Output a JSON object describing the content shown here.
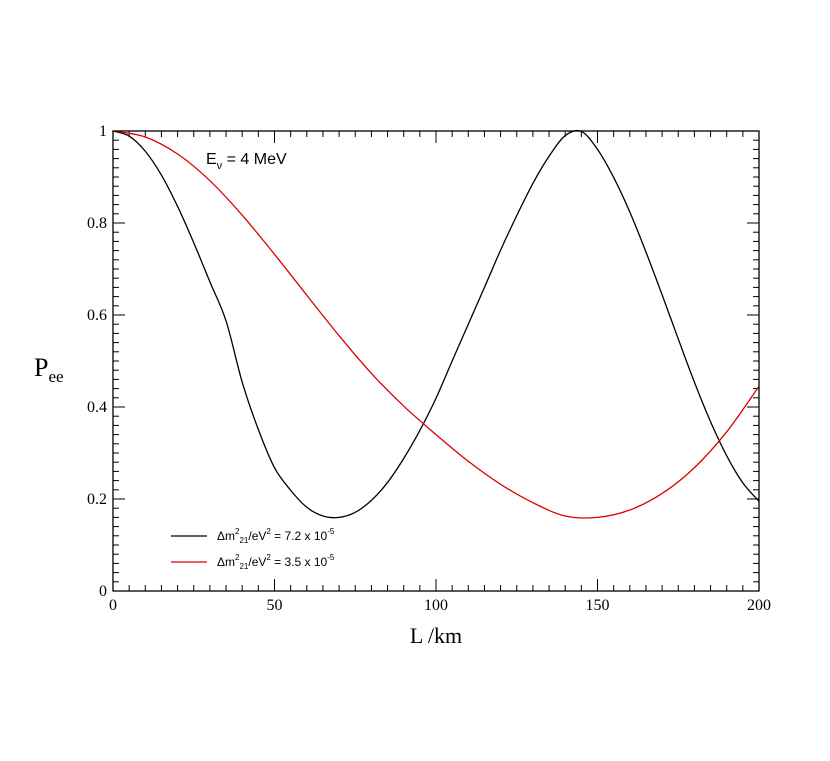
{
  "chart_data": {
    "type": "line",
    "xlabel": "L /km",
    "ylabel": {
      "main": "P",
      "sub": "ee"
    },
    "xlim": [
      0,
      200
    ],
    "ylim": [
      0,
      1
    ],
    "xticks": [
      0,
      50,
      100,
      150,
      200
    ],
    "xtick_labels": [
      "0",
      "50",
      "100",
      "150",
      "200"
    ],
    "yticks": [
      0,
      0.2,
      0.4,
      0.6,
      0.8,
      1
    ],
    "ytick_labels": [
      "0",
      "0.2",
      "0.4",
      "0.6",
      "0.8",
      "1"
    ],
    "grid": false,
    "legend_position": "bottom-left",
    "annotation": {
      "main": "E",
      "sub": "ν",
      "rest": " = 4 MeV"
    },
    "series": [
      {
        "color": "#000000",
        "legend": {
          "a": "Δm",
          "sup1": "2",
          "sub1": "21",
          "b": "/eV",
          "sup2": "2",
          "c": " = 7.2 x 10",
          "sup3": "-5"
        },
        "x": [
          0,
          5,
          10,
          15,
          20,
          25,
          30,
          35,
          40,
          45,
          50,
          55,
          60,
          65,
          70,
          75,
          80,
          85,
          90,
          95,
          100,
          105,
          110,
          115,
          120,
          125,
          130,
          135,
          140,
          145,
          150,
          155,
          160,
          165,
          170,
          175,
          180,
          185,
          190,
          195,
          200
        ],
        "y": [
          1.0,
          0.989,
          0.956,
          0.904,
          0.836,
          0.757,
          0.672,
          0.587,
          0.454,
          0.351,
          0.268,
          0.219,
          0.182,
          0.163,
          0.16,
          0.171,
          0.197,
          0.236,
          0.288,
          0.349,
          0.419,
          0.5,
          0.58,
          0.66,
          0.741,
          0.816,
          0.886,
          0.945,
          0.99,
          0.999,
          0.96,
          0.899,
          0.824,
          0.737,
          0.644,
          0.548,
          0.454,
          0.368,
          0.294,
          0.235,
          0.195
        ]
      },
      {
        "color": "#dd0000",
        "legend": {
          "a": "Δm",
          "sup1": "2",
          "sub1": "21",
          "b": "/eV",
          "sup2": "2",
          "c": " = 3.5 x 10",
          "sup3": "-5"
        },
        "x": [
          0,
          10,
          20,
          30,
          40,
          50,
          60,
          70,
          80,
          90,
          100,
          110,
          120,
          130,
          140,
          150,
          160,
          170,
          180,
          190,
          200
        ],
        "y": [
          1.0,
          0.987,
          0.95,
          0.892,
          0.817,
          0.732,
          0.643,
          0.555,
          0.473,
          0.402,
          0.34,
          0.282,
          0.232,
          0.192,
          0.163,
          0.16,
          0.176,
          0.212,
          0.268,
          0.346,
          0.445
        ]
      }
    ]
  }
}
